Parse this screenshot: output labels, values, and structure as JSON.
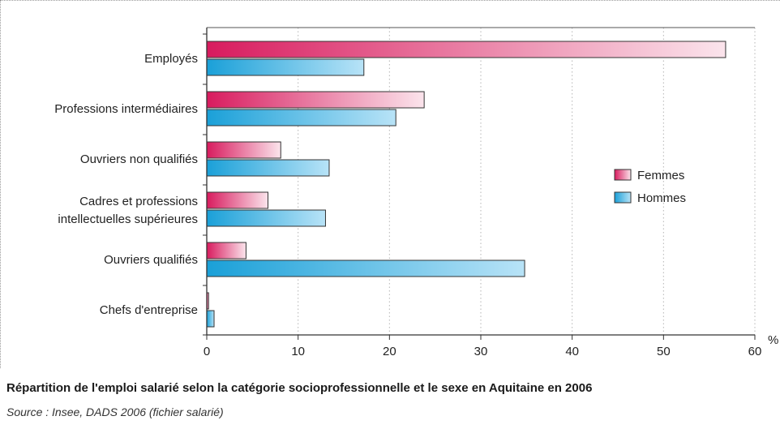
{
  "chart_data": {
    "type": "bar",
    "orientation": "horizontal",
    "categories": [
      [
        "Employés"
      ],
      [
        "Professions intermédiaires"
      ],
      [
        "Ouvriers non qualifiés"
      ],
      [
        "Cadres et professions",
        "intellectuelles supérieures"
      ],
      [
        "Ouvriers qualifiés"
      ],
      [
        "Chefs d'entreprise"
      ]
    ],
    "series": [
      {
        "name": "Femmes",
        "values": [
          56.8,
          23.8,
          8.1,
          6.7,
          4.3,
          0.2
        ],
        "color": "#d81b5e",
        "color_light": "#fbe4ec"
      },
      {
        "name": "Hommes",
        "values": [
          17.2,
          20.7,
          13.4,
          13.0,
          34.8,
          0.8
        ],
        "color": "#1aa0d8",
        "color_light": "#b8e3f7"
      }
    ],
    "xlim": [
      0,
      60
    ],
    "xticks": [
      "0",
      "10",
      "20",
      "30",
      "40",
      "50",
      "60"
    ],
    "xticks_values": [
      0,
      10,
      20,
      30,
      40,
      50,
      60
    ],
    "x_unit": "%",
    "grid": "vertical dotted",
    "legend_placement": "right"
  },
  "caption": "Répartition de l'emploi salarié selon la catégorie socioprofessionnelle et le sexe en Aquitaine en 2006",
  "source": "Source : Insee, DADS 2006 (fichier salarié)"
}
